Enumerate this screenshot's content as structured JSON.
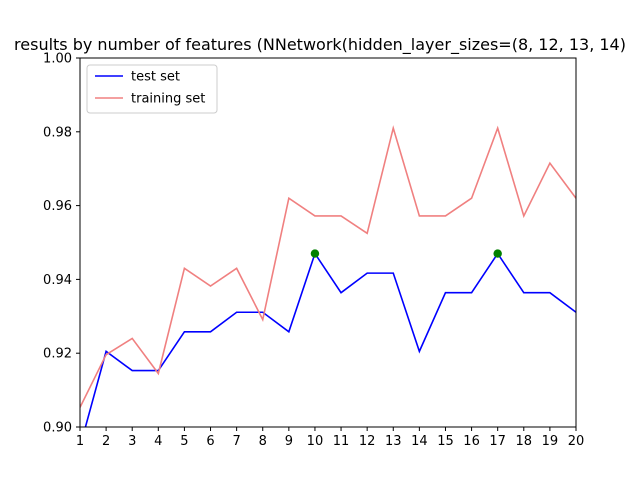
{
  "chart_data": {
    "type": "line",
    "title": "results by number of features (NNetwork(hidden_layer_sizes=(8, 12, 13, 14)",
    "xlabel": "",
    "ylabel": "",
    "xlim": [
      1,
      20
    ],
    "ylim": [
      0.9,
      1.0
    ],
    "xticks": [
      1,
      2,
      3,
      4,
      5,
      6,
      7,
      8,
      9,
      10,
      11,
      12,
      13,
      14,
      15,
      16,
      17,
      18,
      19,
      20
    ],
    "yticks": [
      0.9,
      0.92,
      0.94,
      0.96,
      0.98,
      1.0
    ],
    "ytick_labels": [
      "0.90",
      "0.92",
      "0.94",
      "0.96",
      "0.98",
      "1.00"
    ],
    "grid": false,
    "legend_position": "upper-left",
    "series": [
      {
        "name": "test set",
        "color": "#0000ff",
        "x": [
          1,
          2,
          3,
          4,
          5,
          6,
          7,
          8,
          9,
          10,
          11,
          12,
          13,
          14,
          15,
          16,
          17,
          18,
          19,
          20
        ],
        "values": [
          0.8946,
          0.9205,
          0.9153,
          0.9153,
          0.9258,
          0.9258,
          0.9311,
          0.9311,
          0.9258,
          0.947,
          0.9364,
          0.9417,
          0.9417,
          0.9205,
          0.9364,
          0.9364,
          0.947,
          0.9364,
          0.9364,
          0.9311
        ]
      },
      {
        "name": "training set",
        "color": "#f08080",
        "x": [
          1,
          2,
          3,
          4,
          5,
          6,
          7,
          8,
          9,
          10,
          11,
          12,
          13,
          14,
          15,
          16,
          17,
          18,
          19,
          20
        ],
        "values": [
          0.9053,
          0.9196,
          0.924,
          0.9145,
          0.943,
          0.9382,
          0.943,
          0.9291,
          0.962,
          0.9572,
          0.9572,
          0.9525,
          0.981,
          0.9572,
          0.9572,
          0.962,
          0.981,
          0.9572,
          0.9715,
          0.962
        ]
      }
    ],
    "markers": {
      "color": "#008000",
      "points": [
        {
          "x": 10,
          "y": 0.947
        },
        {
          "x": 17,
          "y": 0.947
        }
      ]
    }
  }
}
